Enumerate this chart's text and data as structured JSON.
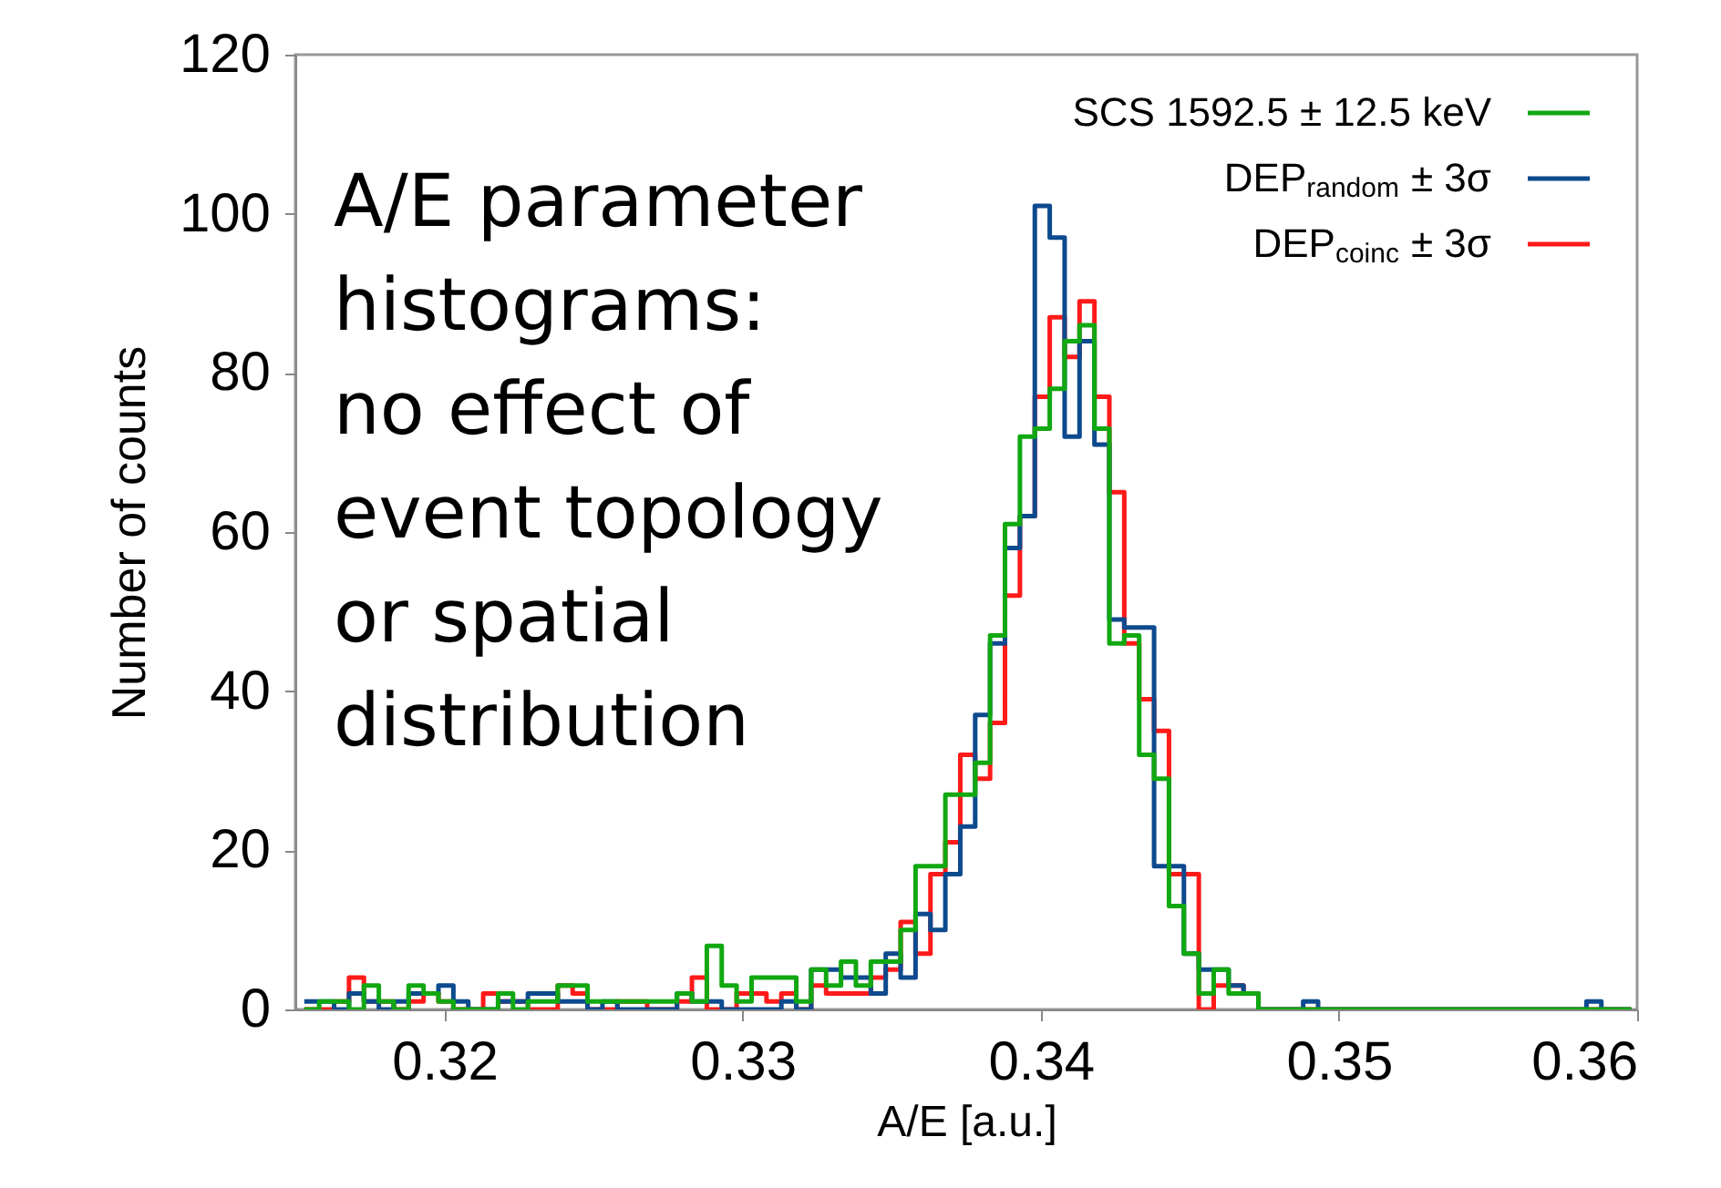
{
  "chart_data": {
    "type": "histogram",
    "xlabel": "A/E [a.u.]",
    "ylabel": "Number of counts",
    "xlim": [
      0.315,
      0.36
    ],
    "xticks": [
      0.32,
      0.33,
      0.34,
      0.35,
      0.36
    ],
    "ylim": [
      0,
      120
    ],
    "yticks": [
      0,
      20,
      40,
      60,
      80,
      100,
      120
    ],
    "grid": false,
    "legend": "top right",
    "annotations": [
      "A/E parameter\nhistograms:\n\nno effect of\nevent topology\nor spatial\ndistribution"
    ],
    "bins": [
      0.3153,
      0.3158,
      0.3163,
      0.3168,
      0.3173,
      0.3178,
      0.3183,
      0.3188,
      0.3193,
      0.3198,
      0.3203,
      0.3208,
      0.3213,
      0.3218,
      0.3223,
      0.3228,
      0.3233,
      0.3238,
      0.3243,
      0.3248,
      0.3253,
      0.3258,
      0.3263,
      0.3268,
      0.3273,
      0.3278,
      0.3283,
      0.3288,
      0.3293,
      0.3298,
      0.3303,
      0.3308,
      0.3313,
      0.3318,
      0.3323,
      0.3328,
      0.3333,
      0.3338,
      0.3343,
      0.3348,
      0.3353,
      0.3358,
      0.3363,
      0.3368,
      0.3373,
      0.3378,
      0.3383,
      0.3388,
      0.3393,
      0.3398,
      0.3403,
      0.3408,
      0.3413,
      0.3418,
      0.3423,
      0.3428,
      0.3433,
      0.3438,
      0.3443,
      0.3448,
      0.3453,
      0.3458,
      0.3463,
      0.3468,
      0.3473,
      0.3478,
      0.3483,
      0.3488,
      0.3493,
      0.3498,
      0.3503,
      0.3508,
      0.3513,
      0.3518,
      0.3523,
      0.3528,
      0.3533,
      0.3538,
      0.3543,
      0.3548,
      0.3553,
      0.3558,
      0.3563,
      0.3568,
      0.3573,
      0.3578,
      0.3583,
      0.3588,
      0.3593,
      0.3598
    ],
    "series": [
      {
        "name": "SCS 1592.5 ± 12.5 keV",
        "color": "#11a811",
        "values": [
          0,
          1,
          1,
          0,
          3,
          1,
          0,
          3,
          2,
          1,
          0,
          0,
          0,
          2,
          0,
          1,
          1,
          3,
          3,
          1,
          1,
          1,
          1,
          1,
          1,
          2,
          1,
          8,
          3,
          1,
          4,
          4,
          4,
          1,
          5,
          3,
          6,
          3,
          6,
          6,
          10,
          18,
          18,
          27,
          27,
          31,
          47,
          61,
          72,
          73,
          78,
          84,
          86,
          73,
          46,
          47,
          32,
          29,
          13,
          7,
          2,
          5,
          2,
          2,
          0,
          0,
          0,
          0,
          0,
          0,
          0,
          0,
          0,
          0,
          0,
          0,
          0,
          0,
          0,
          0,
          0,
          0,
          0,
          0,
          0,
          0,
          0,
          0,
          0
        ]
      },
      {
        "name": "DEP$_{random}$ ± 3σ",
        "color": "#0d4a8e",
        "values": [
          1,
          1,
          0,
          2,
          1,
          0,
          1,
          2,
          2,
          3,
          1,
          0,
          0,
          1,
          1,
          2,
          2,
          1,
          1,
          0,
          1,
          0,
          0,
          0,
          0,
          2,
          1,
          1,
          0,
          0,
          0,
          0,
          1,
          0,
          5,
          5,
          4,
          4,
          2,
          7,
          4,
          12,
          10,
          17,
          23,
          37,
          46,
          58,
          62,
          101,
          97,
          72,
          84,
          71,
          49,
          48,
          48,
          18,
          18,
          7,
          5,
          5,
          3,
          2,
          0,
          0,
          0,
          1,
          0,
          0,
          0,
          0,
          0,
          0,
          0,
          0,
          0,
          0,
          0,
          0,
          0,
          0,
          0,
          0,
          0,
          0,
          1,
          0,
          0
        ]
      },
      {
        "name": "DEP$_{coinc}$ ± 3σ",
        "color": "#ff1a1a",
        "values": [
          0,
          0,
          1,
          4,
          1,
          1,
          0,
          1,
          2,
          1,
          0,
          0,
          2,
          1,
          1,
          0,
          0,
          3,
          2,
          0,
          0,
          1,
          1,
          0,
          0,
          1,
          4,
          0,
          0,
          2,
          2,
          1,
          2,
          0,
          3,
          2,
          2,
          2,
          4,
          5,
          11,
          7,
          17,
          21,
          32,
          29,
          36,
          52,
          62,
          77,
          87,
          82,
          89,
          77,
          65,
          46,
          39,
          35,
          17,
          17,
          0,
          3,
          3,
          2,
          0,
          0,
          0,
          0,
          0,
          0,
          0,
          0,
          0,
          0,
          0,
          0,
          0,
          0,
          0,
          0,
          0,
          0,
          0,
          0,
          0,
          0,
          0,
          0,
          0
        ]
      }
    ]
  }
}
